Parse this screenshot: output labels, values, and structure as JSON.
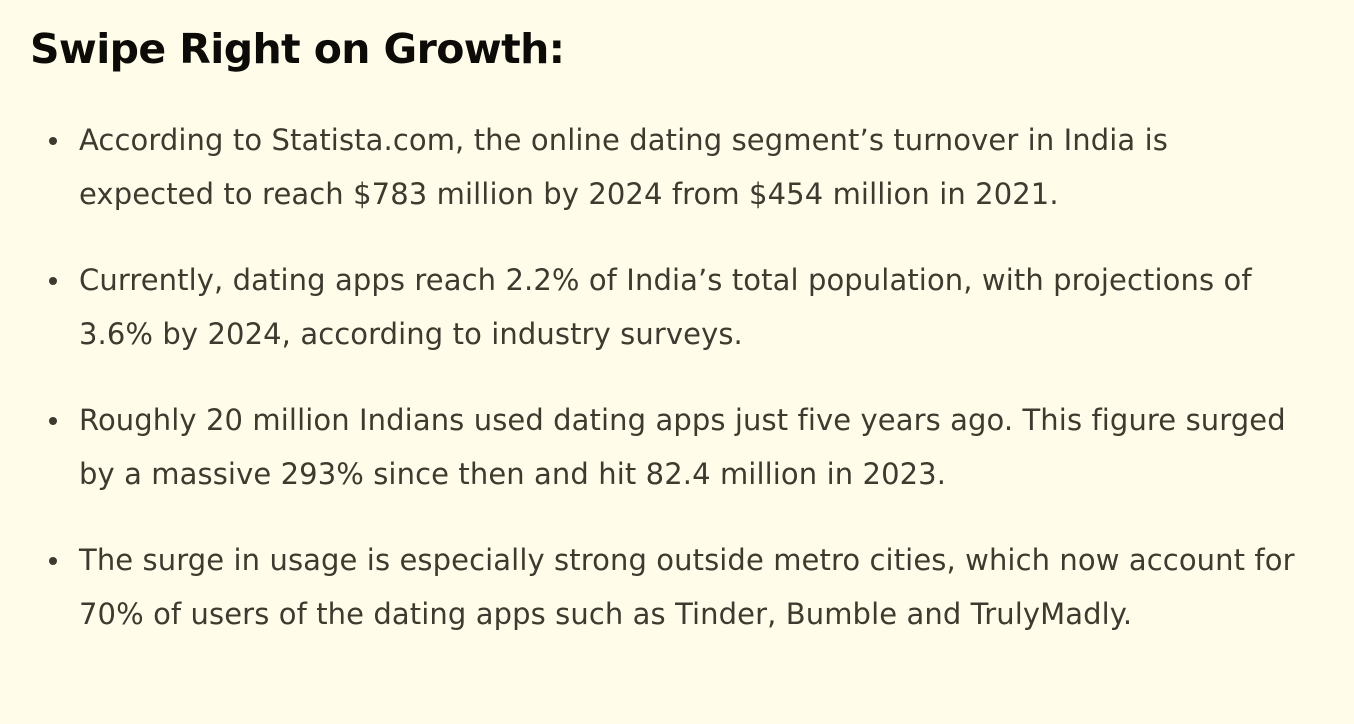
{
  "article": {
    "heading": "Swipe Right on Growth:",
    "bullets": [
      "According to Statista.com, the online dating segment’s turnover in India is expected to reach $783 million by 2024 from $454 million in 2021.",
      "Currently, dating apps reach 2.2% of India’s total population, with projections of 3.6% by 2024, according to industry surveys.",
      "Roughly 20 million Indians used dating apps just five years ago. This figure surged by a massive 293% since then and hit 82.4 million in 2023.",
      "The surge in usage is especially strong outside metro cities, which now account for 70% of users of the dating apps such as Tinder, Bumble and TrulyMadly."
    ]
  },
  "colors": {
    "background": "#fffdea",
    "heading": "#0d0b08",
    "body_text": "#3f3a2f"
  }
}
